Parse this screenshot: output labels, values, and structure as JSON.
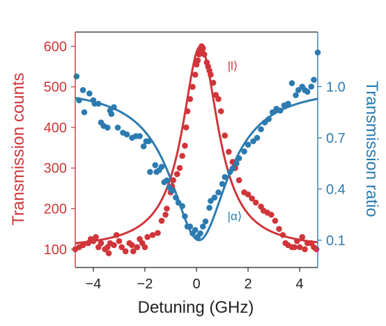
{
  "chart_data": {
    "type": "scatter",
    "xlabel": "Detuning (GHz)",
    "ylabel_left": "Transmission counts",
    "ylabel_right": "Transmission ratio",
    "xlim": [
      -4.7,
      4.7
    ],
    "ylim_left": [
      55,
      635
    ],
    "ylim_right": [
      -0.06,
      1.32
    ],
    "x_ticks": [
      -4,
      -2,
      0,
      2,
      4
    ],
    "x_tick_labels": [
      "−4",
      "−2",
      "0",
      "2",
      "4"
    ],
    "y_left_ticks": [
      100,
      200,
      300,
      400,
      500,
      600
    ],
    "y_left_tick_labels": [
      "100",
      "200",
      "300",
      "400",
      "500",
      "600"
    ],
    "y_right_ticks": [
      0.1,
      0.4,
      0.7,
      1.0
    ],
    "y_right_tick_labels": [
      "0.1",
      "0.4",
      "0.7",
      "1.0"
    ],
    "grid": false,
    "colors": {
      "red": "#d0353a",
      "blue": "#2c7bb0"
    },
    "series": [
      {
        "name": "|l⟩",
        "axis": "left",
        "color": "#d0353a",
        "fit": {
          "model": "lorentzian",
          "baseline": 100,
          "amplitude": 500,
          "center": 0.15,
          "hwhm": 0.85
        },
        "points": [
          [
            -4.7,
            100
          ],
          [
            -4.55,
            105
          ],
          [
            -4.4,
            110
          ],
          [
            -4.2,
            115
          ],
          [
            -4.1,
            125
          ],
          [
            -4.0,
            120
          ],
          [
            -3.9,
            130
          ],
          [
            -3.8,
            105
          ],
          [
            -3.7,
            115
          ],
          [
            -3.55,
            100
          ],
          [
            -3.45,
            105
          ],
          [
            -3.4,
            90
          ],
          [
            -3.35,
            115
          ],
          [
            -3.2,
            110
          ],
          [
            -3.1,
            135
          ],
          [
            -3.0,
            120
          ],
          [
            -2.9,
            105
          ],
          [
            -2.75,
            95
          ],
          [
            -2.6,
            115
          ],
          [
            -2.5,
            110
          ],
          [
            -2.45,
            95
          ],
          [
            -2.3,
            105
          ],
          [
            -2.2,
            125
          ],
          [
            -2.1,
            115
          ],
          [
            -2.0,
            105
          ],
          [
            -1.9,
            130
          ],
          [
            -1.7,
            135
          ],
          [
            -1.5,
            140
          ],
          [
            -1.35,
            170
          ],
          [
            -1.2,
            185
          ],
          [
            -1.15,
            200
          ],
          [
            -1.0,
            240
          ],
          [
            -0.95,
            255
          ],
          [
            -0.9,
            270
          ],
          [
            -0.75,
            285
          ],
          [
            -0.65,
            300
          ],
          [
            -0.55,
            330
          ],
          [
            -0.45,
            355
          ],
          [
            -0.4,
            400
          ],
          [
            -0.35,
            440
          ],
          [
            -0.25,
            470
          ],
          [
            -0.15,
            500
          ],
          [
            -0.05,
            530
          ],
          [
            0.0,
            555
          ],
          [
            0.05,
            565
          ],
          [
            0.1,
            580
          ],
          [
            0.15,
            590
          ],
          [
            0.2,
            600
          ],
          [
            0.25,
            595
          ],
          [
            0.3,
            580
          ],
          [
            0.4,
            560
          ],
          [
            0.45,
            550
          ],
          [
            0.5,
            540
          ],
          [
            0.55,
            530
          ],
          [
            0.65,
            510
          ],
          [
            0.75,
            480
          ],
          [
            0.85,
            470
          ],
          [
            0.95,
            440
          ],
          [
            1.1,
            380
          ],
          [
            1.25,
            340
          ],
          [
            1.4,
            315
          ],
          [
            1.5,
            300
          ],
          [
            1.65,
            270
          ],
          [
            1.85,
            240
          ],
          [
            2.0,
            235
          ],
          [
            2.15,
            225
          ],
          [
            2.3,
            215
          ],
          [
            2.5,
            205
          ],
          [
            2.6,
            195
          ],
          [
            2.75,
            190
          ],
          [
            2.9,
            185
          ],
          [
            3.05,
            170
          ],
          [
            3.2,
            150
          ],
          [
            3.35,
            135
          ],
          [
            3.45,
            115
          ],
          [
            3.55,
            110
          ],
          [
            3.7,
            105
          ],
          [
            3.8,
            105
          ],
          [
            3.9,
            120
          ],
          [
            4.0,
            105
          ],
          [
            4.1,
            130
          ],
          [
            4.2,
            100
          ],
          [
            4.3,
            115
          ],
          [
            4.45,
            115
          ],
          [
            4.55,
            105
          ],
          [
            4.65,
            100
          ]
        ]
      },
      {
        "name": "|α⟩",
        "axis": "right",
        "color": "#2c7bb0",
        "fit": {
          "model": "inverted-lorentzian",
          "baseline": 1.0,
          "depth": 0.9,
          "center": 0.1,
          "hwhm": 1.35
        },
        "points": [
          [
            -4.65,
            1.06
          ],
          [
            -4.55,
            0.92
          ],
          [
            -4.4,
            0.98
          ],
          [
            -4.35,
            0.85
          ],
          [
            -4.15,
            0.96
          ],
          [
            -4.0,
            0.92
          ],
          [
            -3.95,
            0.9
          ],
          [
            -3.8,
            0.9
          ],
          [
            -3.7,
            0.79
          ],
          [
            -3.6,
            0.77
          ],
          [
            -3.45,
            0.76
          ],
          [
            -3.35,
            0.86
          ],
          [
            -3.3,
            0.84
          ],
          [
            -3.2,
            0.88
          ],
          [
            -3.05,
            0.76
          ],
          [
            -2.85,
            0.73
          ],
          [
            -2.7,
            0.72
          ],
          [
            -2.5,
            0.7
          ],
          [
            -2.35,
            0.71
          ],
          [
            -2.2,
            0.71
          ],
          [
            -2.05,
            0.65
          ],
          [
            -1.95,
            0.68
          ],
          [
            -1.85,
            0.68
          ],
          [
            -1.8,
            0.5
          ],
          [
            -1.6,
            0.54
          ],
          [
            -1.55,
            0.5
          ],
          [
            -1.45,
            0.51
          ],
          [
            -1.35,
            0.53
          ],
          [
            -1.25,
            0.44
          ],
          [
            -1.15,
            0.45
          ],
          [
            -1.05,
            0.41
          ],
          [
            -0.95,
            0.39
          ],
          [
            -0.8,
            0.35
          ],
          [
            -0.7,
            0.32
          ],
          [
            -0.55,
            0.3
          ],
          [
            -0.45,
            0.24
          ],
          [
            -0.35,
            0.18
          ],
          [
            -0.25,
            0.18
          ],
          [
            -0.15,
            0.14
          ],
          [
            -0.05,
            0.16
          ],
          [
            0.05,
            0.12
          ],
          [
            0.15,
            0.14
          ],
          [
            0.25,
            0.18
          ],
          [
            0.35,
            0.21
          ],
          [
            0.5,
            0.29
          ],
          [
            0.55,
            0.33
          ],
          [
            0.7,
            0.35
          ],
          [
            0.85,
            0.38
          ],
          [
            1.0,
            0.43
          ],
          [
            1.1,
            0.47
          ],
          [
            1.3,
            0.5
          ],
          [
            1.4,
            0.52
          ],
          [
            1.55,
            0.55
          ],
          [
            1.65,
            0.58
          ],
          [
            1.85,
            0.62
          ],
          [
            2.0,
            0.66
          ],
          [
            2.2,
            0.68
          ],
          [
            2.35,
            0.7
          ],
          [
            2.5,
            0.75
          ],
          [
            2.65,
            0.79
          ],
          [
            2.8,
            0.81
          ],
          [
            2.95,
            0.85
          ],
          [
            3.1,
            0.87
          ],
          [
            3.25,
            0.86
          ],
          [
            3.4,
            0.89
          ],
          [
            3.55,
            0.9
          ],
          [
            3.7,
            1.02
          ],
          [
            3.85,
            0.95
          ],
          [
            3.95,
            0.98
          ],
          [
            4.1,
            1.0
          ],
          [
            4.2,
            0.98
          ],
          [
            4.3,
            0.97
          ],
          [
            4.45,
            1.0
          ],
          [
            4.55,
            1.04
          ],
          [
            4.7,
            1.2
          ]
        ]
      }
    ]
  }
}
